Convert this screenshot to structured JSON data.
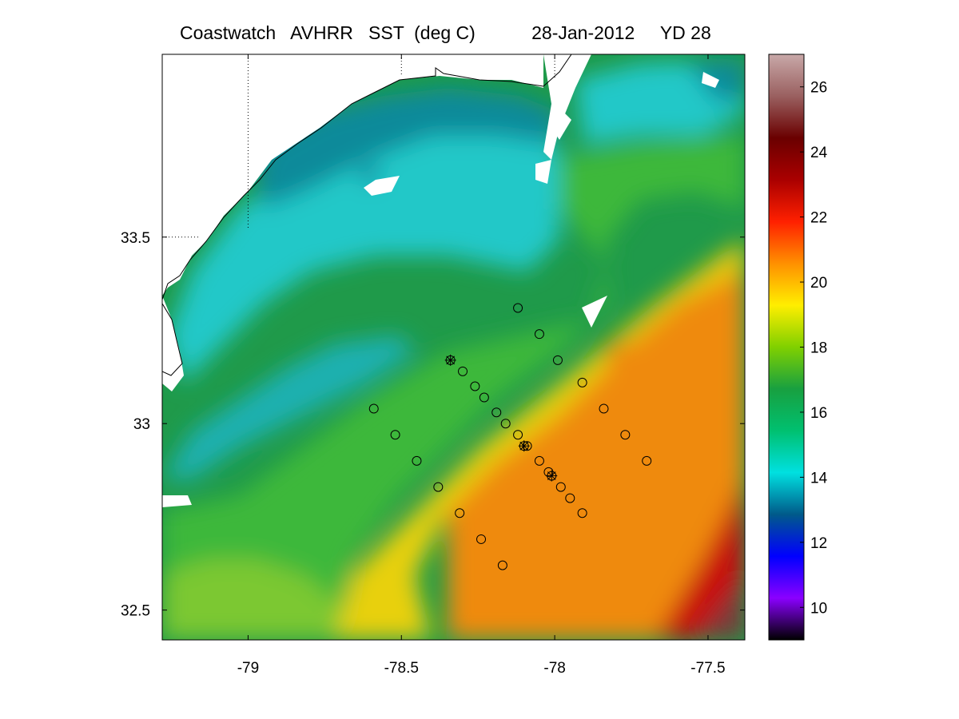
{
  "title": {
    "product": "Coastwatch   AVHRR   SST  (deg C)",
    "date": "28-Jan-2012",
    "yearday": "YD 28"
  },
  "map": {
    "x_ticks": [
      {
        "value": -79,
        "label": "-79"
      },
      {
        "value": -78.5,
        "label": "-78.5"
      },
      {
        "value": -78,
        "label": "-78"
      },
      {
        "value": -77.5,
        "label": "-77.5"
      }
    ],
    "y_ticks": [
      {
        "value": 33.5,
        "label": "33.5"
      },
      {
        "value": 33,
        "label": "33"
      },
      {
        "value": 32.5,
        "label": "32.5"
      }
    ],
    "lon_range": [
      -79.28,
      -77.38
    ],
    "lat_range": [
      32.42,
      33.99
    ],
    "grid": "dotted over land only"
  },
  "colorbar": {
    "range": [
      9,
      27
    ],
    "ticks": [
      {
        "value": 10,
        "label": "10"
      },
      {
        "value": 12,
        "label": "12"
      },
      {
        "value": 14,
        "label": "14"
      },
      {
        "value": 16,
        "label": "16"
      },
      {
        "value": 18,
        "label": "18"
      },
      {
        "value": 20,
        "label": "20"
      },
      {
        "value": 22,
        "label": "22"
      },
      {
        "value": 24,
        "label": "24"
      },
      {
        "value": 26,
        "label": "26"
      }
    ],
    "colors": [
      "#000000",
      "#8a00ff",
      "#0000ff",
      "#005a8a",
      "#00e0e0",
      "#00c070",
      "#18a040",
      "#80d000",
      "#ffee00",
      "#ff9000",
      "#ff2000",
      "#aa0000",
      "#6a0000",
      "#9a6060",
      "#c8a8a8"
    ]
  },
  "stations": {
    "circles": [
      [
        -78.12,
        33.31
      ],
      [
        -78.05,
        33.24
      ],
      [
        -77.99,
        33.17
      ],
      [
        -77.91,
        33.11
      ],
      [
        -77.84,
        33.04
      ],
      [
        -77.77,
        32.97
      ],
      [
        -77.7,
        32.9
      ],
      [
        -78.59,
        33.04
      ],
      [
        -78.52,
        32.97
      ],
      [
        -78.45,
        32.9
      ],
      [
        -78.38,
        32.83
      ],
      [
        -78.31,
        32.76
      ],
      [
        -78.24,
        32.69
      ],
      [
        -78.17,
        32.62
      ],
      [
        -78.3,
        33.14
      ],
      [
        -78.26,
        33.1
      ],
      [
        -78.23,
        33.07
      ],
      [
        -78.19,
        33.03
      ],
      [
        -78.16,
        33.0
      ],
      [
        -78.12,
        32.97
      ],
      [
        -78.09,
        32.94
      ],
      [
        -78.05,
        32.9
      ],
      [
        -78.02,
        32.87
      ],
      [
        -77.98,
        32.83
      ],
      [
        -77.95,
        32.8
      ],
      [
        -77.91,
        32.76
      ]
    ],
    "asterisks": [
      [
        -78.34,
        33.17
      ],
      [
        -78.1,
        32.94
      ],
      [
        -78.01,
        32.86
      ]
    ]
  }
}
